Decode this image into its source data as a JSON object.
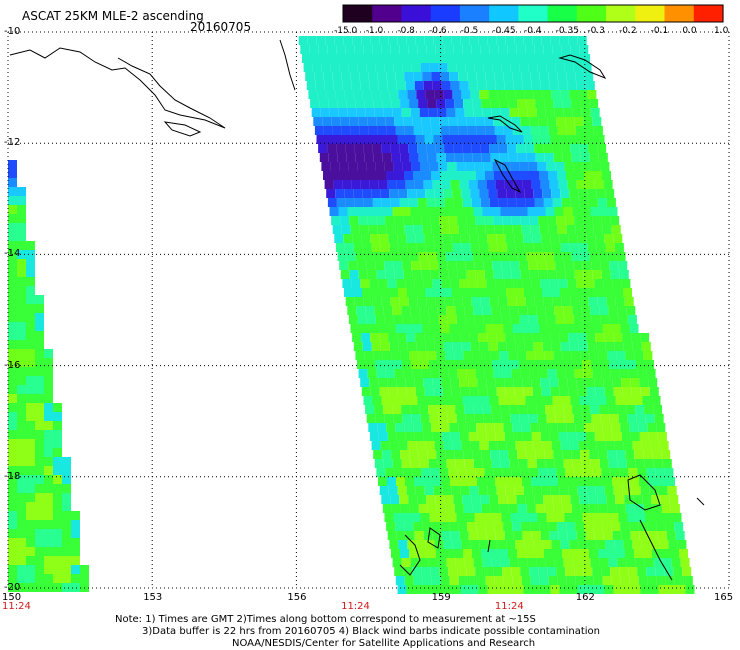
{
  "title": "ASCAT 25KM MLE-2 ascending",
  "date": "20160705",
  "colorbar": {
    "labels": [
      "-15.0",
      "-1.0",
      "-0.8",
      "-0.6",
      "-0.5",
      "-0.45",
      "-0.4",
      "-0.35",
      "-0.3",
      "-0.2",
      "-0.1",
      "0.0",
      "1.0"
    ],
    "colors": [
      "#200020",
      "#50008c",
      "#3a10d8",
      "#1a3cff",
      "#1a80ff",
      "#10c8ff",
      "#20ffc8",
      "#18ff48",
      "#50ff18",
      "#b0ff18",
      "#f0f010",
      "#ff9000",
      "#ff2000"
    ]
  },
  "map": {
    "lat_range": [
      -20,
      -10
    ],
    "lon_range": [
      150,
      165
    ],
    "lat_labels": [
      "-10",
      "-12",
      "-14",
      "-16",
      "-18",
      "-20"
    ],
    "lon_labels": [
      "150",
      "153",
      "156",
      "159",
      "162",
      "165"
    ],
    "time_labels": [
      {
        "lon": 150,
        "text": "11:24"
      },
      {
        "lon": 157.2,
        "text": "11:24"
      },
      {
        "lon": 160.4,
        "text": "11:24"
      }
    ]
  },
  "notes": [
    "Note: 1) Times are GMT 2)Times along bottom correspond to measurement at ~15S",
    "3)Data buffer is 22 hrs from 20160705 4) Black wind barbs indicate possible contamination",
    "NOAA/NESDIS/Center for Satellite Applications and Research"
  ]
}
